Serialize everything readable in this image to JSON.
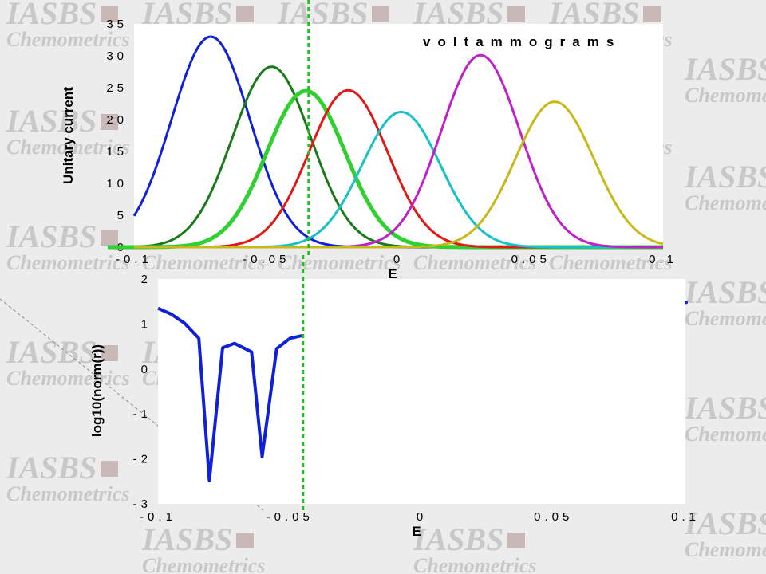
{
  "watermark": {
    "line1": "IASBS",
    "line2": "Chemometrics"
  },
  "colors": {
    "background": "#ececec",
    "plot_bg": "#ffffff",
    "blue": "#1020d8",
    "darkgreen": "#1a7a1a",
    "green": "#30d030",
    "red": "#e01818",
    "cyan": "#18c0c8",
    "magenta": "#c020c8",
    "olive": "#c8b818",
    "marker": "#22c022"
  },
  "chart_data": [
    {
      "type": "line",
      "title": "voltammograms",
      "xlabel": "E",
      "ylabel": "Unitary current",
      "xlim": [
        -0.1,
        0.1
      ],
      "ylim": [
        0,
        35
      ],
      "xticks": [
        -0.1,
        -0.05,
        0,
        0.05,
        0.1
      ],
      "xtick_labels": [
        "-0.1",
        "-0.05",
        "0",
        "0.05",
        "0.1"
      ],
      "yticks": [
        0,
        5,
        10,
        15,
        20,
        25,
        30,
        35
      ],
      "ytick_labels": [
        "0",
        "5",
        "10",
        "15",
        "20",
        "25",
        "30",
        "35"
      ],
      "grid": false,
      "marker_line_x": -0.034,
      "peaks": [
        {
          "color": "blue",
          "center": -0.071,
          "height": 33.0,
          "width": 0.021
        },
        {
          "color": "darkgreen",
          "center": -0.048,
          "height": 28.3,
          "width": 0.021
        },
        {
          "color": "green",
          "center": -0.035,
          "height": 24.5,
          "width": 0.021,
          "thick": true
        },
        {
          "color": "red",
          "center": -0.019,
          "height": 24.6,
          "width": 0.021
        },
        {
          "color": "cyan",
          "center": 0.001,
          "height": 21.2,
          "width": 0.021
        },
        {
          "color": "magenta",
          "center": 0.031,
          "height": 30.1,
          "width": 0.021
        },
        {
          "color": "olive",
          "center": 0.059,
          "height": 22.8,
          "width": 0.021
        }
      ]
    },
    {
      "type": "line",
      "title": "",
      "xlabel": "E",
      "ylabel": "log10(norm(r))",
      "xlim": [
        -0.1,
        0.1
      ],
      "ylim": [
        -3,
        2
      ],
      "xticks": [
        -0.1,
        -0.05,
        0,
        0.05,
        0.1
      ],
      "xtick_labels": [
        "-0.1",
        "-0.05",
        "0",
        "0.05",
        "0.1"
      ],
      "yticks": [
        -3,
        -2,
        -1,
        0,
        1,
        2
      ],
      "ytick_labels": [
        "-3",
        "-2",
        "-1",
        "0",
        "1",
        "2"
      ],
      "grid": false,
      "marker_line_x": -0.045,
      "series": [
        {
          "color": "blue",
          "x": [
            -0.1,
            -0.095,
            -0.09,
            -0.0845,
            -0.0805,
            -0.0755,
            -0.071,
            -0.0645,
            -0.0605,
            -0.055,
            -0.05,
            -0.0455
          ],
          "y": [
            1.35,
            1.22,
            1.02,
            0.68,
            -2.48,
            0.47,
            0.57,
            0.38,
            -1.95,
            0.45,
            0.68,
            0.74
          ]
        }
      ],
      "end_point": {
        "x": 0.1,
        "y": 1.48
      }
    }
  ]
}
